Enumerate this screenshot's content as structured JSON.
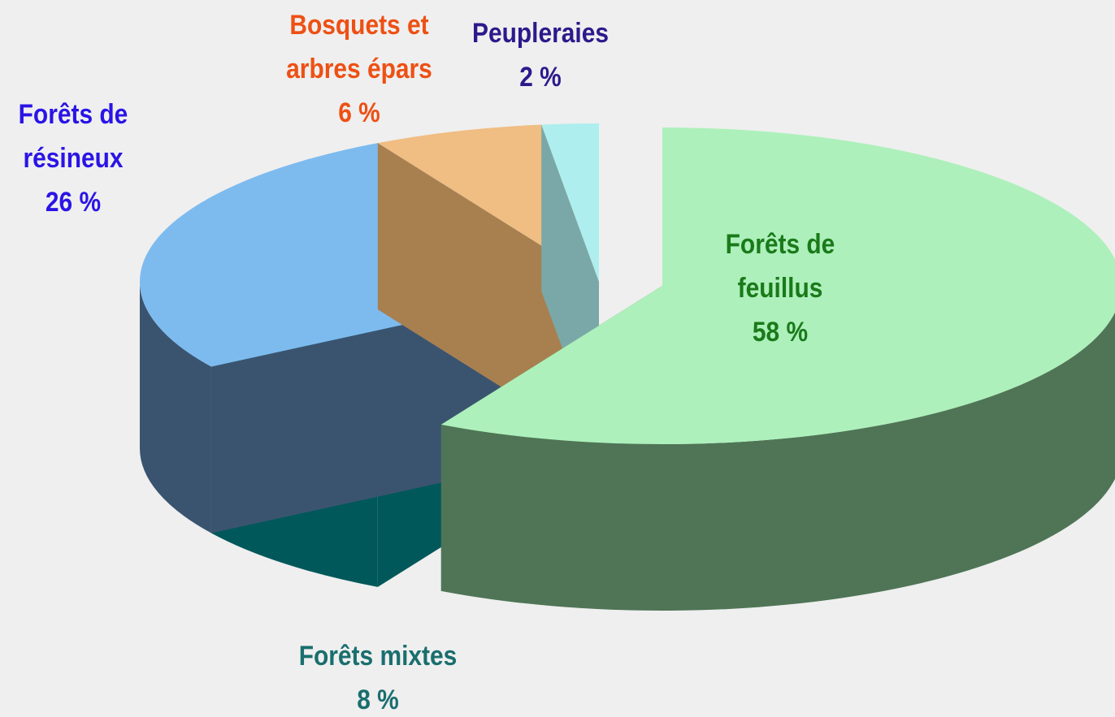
{
  "chart_data": {
    "type": "pie",
    "categories": [
      "Forêts de feuillus",
      "Forêts mixtes",
      "Forêts de résineux",
      "Bosquets et arbres épars",
      "Peupleraies"
    ],
    "values": [
      58,
      8,
      26,
      6,
      2
    ],
    "value_labels": [
      "58 %",
      "8 %",
      "26 %",
      "6 %",
      "2 %"
    ],
    "colors": [
      "#adf0bb",
      "#00c0c0",
      "#7dbbef",
      "#f0bd82",
      "#aeeeee"
    ],
    "side_colors": [
      "#4f7556",
      "#00585a",
      "#3a5470",
      "#a88050",
      "#7aa8a8"
    ],
    "label_colors": [
      "#1a7a1a",
      "#1a6e6e",
      "#2a14e6",
      "#ee5014",
      "#2c1a8c"
    ],
    "explode": [
      true,
      false,
      false,
      false,
      false
    ]
  }
}
